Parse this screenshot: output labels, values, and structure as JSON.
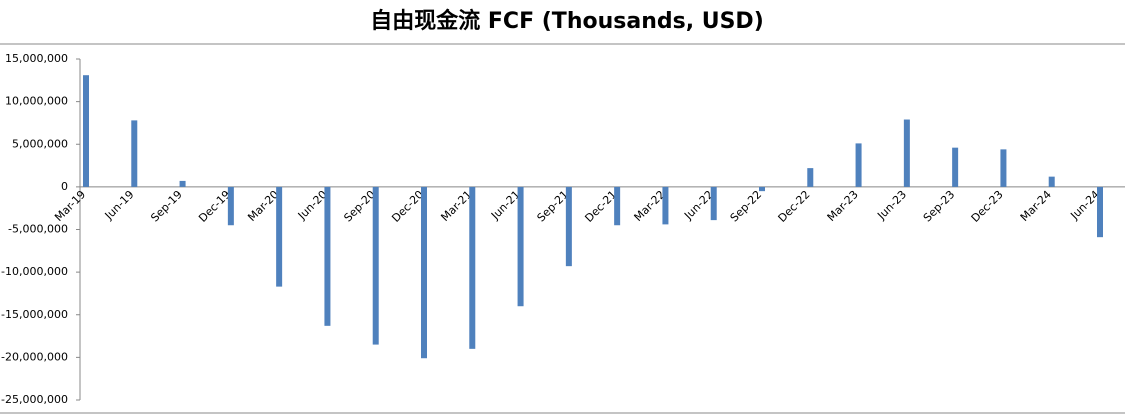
{
  "chart_data": {
    "type": "bar",
    "title": "自由现金流 FCF (Thousands, USD)",
    "categories": [
      "Mar-19",
      "Jun-19",
      "Sep-19",
      "Dec-19",
      "Mar-20",
      "Jun-20",
      "Sep-20",
      "Dec-20",
      "Mar-21",
      "Jun-21",
      "Sep-21",
      "Dec-21",
      "Mar-22",
      "Jun-22",
      "Sep-22",
      "Dec-22",
      "Mar-23",
      "Jun-23",
      "Sep-23",
      "Dec-23",
      "Mar-24",
      "Jun-24"
    ],
    "values": [
      13100000,
      7800000,
      700000,
      -4500000,
      -11700000,
      -16300000,
      -18500000,
      -20100000,
      -19000000,
      -14000000,
      -9300000,
      -4500000,
      -4400000,
      -3900000,
      -500000,
      2200000,
      5100000,
      7900000,
      4600000,
      4400000,
      1200000,
      -5900000
    ],
    "color": "#4f81bd",
    "ylim": [
      -25000000,
      15000000
    ],
    "yticks": [
      {
        "value": -25000000,
        "label": "-25,000,000"
      },
      {
        "value": -20000000,
        "label": "-20,000,000"
      },
      {
        "value": -15000000,
        "label": "-15,000,000"
      },
      {
        "value": -10000000,
        "label": "-10,000,000"
      },
      {
        "value": -5000000,
        "label": "-5,000,000"
      },
      0,
      {
        "value": 5000000,
        "label": "5,000,000"
      },
      {
        "value": 10000000,
        "label": "10,000,000"
      },
      {
        "value": 15000000,
        "label": "15,000,000"
      }
    ]
  }
}
